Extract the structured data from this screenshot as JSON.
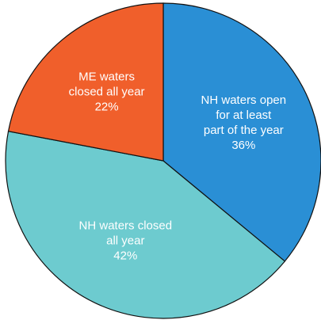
{
  "chart_data": {
    "type": "pie",
    "categories": [
      [
        "NH waters open",
        "for at least",
        "part of the year"
      ],
      [
        "NH waters closed",
        "all year"
      ],
      [
        "ME waters",
        "closed all year"
      ]
    ],
    "values": [
      36,
      42,
      22
    ],
    "value_labels": [
      "36%",
      "42%",
      "22%"
    ],
    "colors": [
      "#2a8fd5",
      "#6dcbcf",
      "#f05f2b"
    ]
  }
}
